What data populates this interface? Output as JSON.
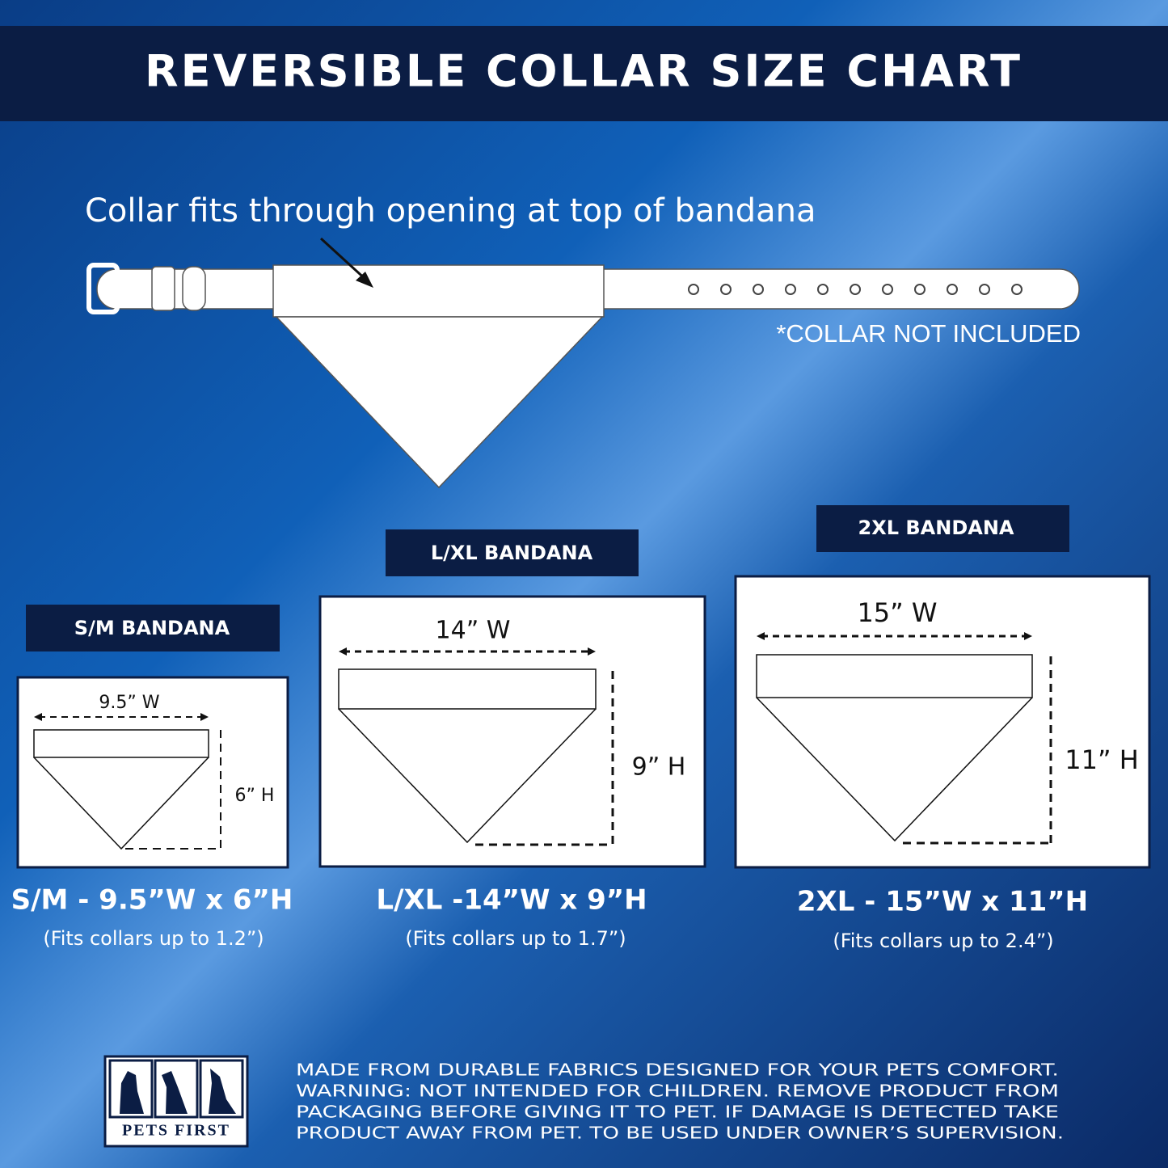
{
  "header": {
    "title": "REVERSIBLE COLLAR SIZE CHART"
  },
  "collar": {
    "caption": "Collar fits through opening at top of bandana",
    "note": "*COLLAR NOT INCLUDED"
  },
  "sizes": [
    {
      "label": "S/M BANDANA",
      "width": "9.5” W",
      "height": "6” H",
      "summary": "S/M - 9.5”W x 6”H",
      "fit": "(Fits collars up to 1.2”)"
    },
    {
      "label": "L/XL BANDANA",
      "width": "14” W",
      "height": "9” H",
      "summary": "L/XL -14”W x 9”H",
      "fit": "(Fits collars up to 1.7”)"
    },
    {
      "label": "2XL BANDANA",
      "width": "15” W",
      "height": "11” H",
      "summary": "2XL - 15”W x 11”H",
      "fit": "(Fits collars up to 2.4”)"
    }
  ],
  "footer": {
    "logo": "PETS FIRST",
    "disclaimer": [
      "MADE FROM DURABLE FABRICS DESIGNED FOR YOUR PETS COMFORT.",
      "WARNING: NOT INTENDED FOR CHILDREN. REMOVE PRODUCT FROM",
      "PACKAGING BEFORE GIVING IT TO PET. IF DAMAGE IS DETECTED TAKE",
      "PRODUCT AWAY FROM PET. TO BE USED UNDER OWNER’S SUPERVISION."
    ]
  }
}
